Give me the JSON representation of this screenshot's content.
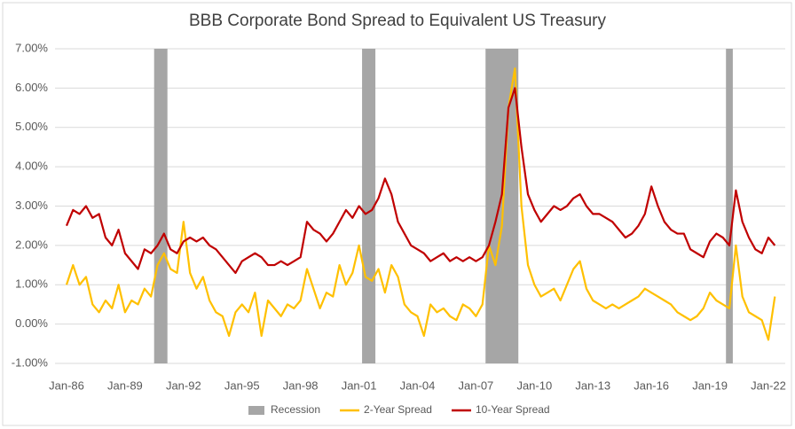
{
  "chart_data": {
    "type": "line",
    "title": "BBB Corporate Bond Spread to Equivalent US Treasury",
    "categories": [
      "Jan-86",
      null,
      null,
      null,
      null,
      null,
      null,
      null,
      null,
      "Jan-89",
      null,
      null,
      null,
      null,
      null,
      null,
      null,
      null,
      "Jan-92",
      null,
      null,
      null,
      null,
      null,
      null,
      null,
      null,
      "Jan-95",
      null,
      null,
      null,
      null,
      null,
      null,
      null,
      null,
      "Jan-98",
      null,
      null,
      null,
      null,
      null,
      null,
      null,
      null,
      "Jan-01",
      null,
      null,
      null,
      null,
      null,
      null,
      null,
      null,
      "Jan-04",
      null,
      null,
      null,
      null,
      null,
      null,
      null,
      null,
      "Jan-07",
      null,
      null,
      null,
      null,
      null,
      null,
      null,
      null,
      "Jan-10",
      null,
      null,
      null,
      null,
      null,
      null,
      null,
      null,
      "Jan-13",
      null,
      null,
      null,
      null,
      null,
      null,
      null,
      null,
      "Jan-16",
      null,
      null,
      null,
      null,
      null,
      null,
      null,
      null,
      "Jan-19",
      null,
      null,
      null,
      null,
      null,
      null,
      null,
      null,
      "Jan-22",
      null
    ],
    "series": [
      {
        "name": "Recession",
        "type": "bar",
        "color": "#a6a6a6",
        "values": [
          null,
          null,
          null,
          null,
          null,
          null,
          null,
          null,
          null,
          null,
          null,
          null,
          null,
          null,
          7,
          7,
          null,
          null,
          null,
          null,
          null,
          null,
          null,
          null,
          null,
          null,
          null,
          null,
          null,
          null,
          null,
          null,
          null,
          null,
          null,
          null,
          null,
          null,
          null,
          null,
          null,
          null,
          null,
          null,
          null,
          null,
          7,
          7,
          null,
          null,
          null,
          null,
          null,
          null,
          null,
          null,
          null,
          null,
          null,
          null,
          null,
          null,
          null,
          null,
          null,
          7,
          7,
          7,
          7,
          7,
          null,
          null,
          null,
          null,
          null,
          null,
          null,
          null,
          null,
          null,
          null,
          null,
          null,
          null,
          null,
          null,
          null,
          null,
          null,
          null,
          null,
          null,
          null,
          null,
          null,
          null,
          null,
          null,
          null,
          null,
          null,
          null,
          7,
          null,
          null,
          null,
          null,
          null,
          null,
          null
        ]
      },
      {
        "name": "2-Year Spread",
        "type": "line",
        "color": "#ffc000",
        "values": [
          1.0,
          1.5,
          1.0,
          1.2,
          0.5,
          0.3,
          0.6,
          0.4,
          1.0,
          0.3,
          0.6,
          0.5,
          0.9,
          0.7,
          1.5,
          1.8,
          1.4,
          1.3,
          2.6,
          1.3,
          0.9,
          1.2,
          0.6,
          0.3,
          0.2,
          -0.3,
          0.3,
          0.5,
          0.3,
          0.8,
          -0.3,
          0.6,
          0.4,
          0.2,
          0.5,
          0.4,
          0.6,
          1.4,
          0.9,
          0.4,
          0.8,
          0.7,
          1.5,
          1.0,
          1.3,
          2.0,
          1.2,
          1.1,
          1.4,
          0.8,
          1.5,
          1.2,
          0.5,
          0.3,
          0.2,
          -0.3,
          0.5,
          0.3,
          0.4,
          0.2,
          0.1,
          0.5,
          0.4,
          0.2,
          0.5,
          2.0,
          1.5,
          2.5,
          5.5,
          6.5,
          3.0,
          1.5,
          1.0,
          0.7,
          0.8,
          0.9,
          0.6,
          1.0,
          1.4,
          1.6,
          0.9,
          0.6,
          0.5,
          0.4,
          0.5,
          0.4,
          0.5,
          0.6,
          0.7,
          0.9,
          0.8,
          0.7,
          0.6,
          0.5,
          0.3,
          0.2,
          0.1,
          0.2,
          0.4,
          0.8,
          0.6,
          0.5,
          0.4,
          2.0,
          0.7,
          0.3,
          0.2,
          0.1,
          -0.4,
          0.7
        ]
      },
      {
        "name": "10-Year Spread",
        "type": "line",
        "color": "#c00000",
        "values": [
          2.5,
          2.9,
          2.8,
          3.0,
          2.7,
          2.8,
          2.2,
          2.0,
          2.4,
          1.8,
          1.6,
          1.4,
          1.9,
          1.8,
          2.0,
          2.3,
          1.9,
          1.8,
          2.1,
          2.2,
          2.1,
          2.2,
          2.0,
          1.9,
          1.7,
          1.5,
          1.3,
          1.6,
          1.7,
          1.8,
          1.7,
          1.5,
          1.5,
          1.6,
          1.5,
          1.6,
          1.7,
          2.6,
          2.4,
          2.3,
          2.1,
          2.3,
          2.6,
          2.9,
          2.7,
          3.0,
          2.8,
          2.9,
          3.2,
          3.7,
          3.3,
          2.6,
          2.3,
          2.0,
          1.9,
          1.8,
          1.6,
          1.7,
          1.8,
          1.6,
          1.7,
          1.6,
          1.7,
          1.6,
          1.7,
          2.0,
          2.6,
          3.3,
          5.5,
          6.0,
          4.5,
          3.3,
          2.9,
          2.6,
          2.8,
          3.0,
          2.9,
          3.0,
          3.2,
          3.3,
          3.0,
          2.8,
          2.8,
          2.7,
          2.6,
          2.4,
          2.2,
          2.3,
          2.5,
          2.8,
          3.5,
          3.0,
          2.6,
          2.4,
          2.3,
          2.3,
          1.9,
          1.8,
          1.7,
          2.1,
          2.3,
          2.2,
          2.0,
          3.4,
          2.6,
          2.2,
          1.9,
          1.8,
          2.2,
          2.0
        ]
      }
    ],
    "ylim": [
      -1,
      7
    ],
    "yticks": [
      {
        "value": -1,
        "label": "-1.00%"
      },
      {
        "value": 0,
        "label": "0.00%"
      },
      {
        "value": 1,
        "label": "1.00%"
      },
      {
        "value": 2,
        "label": "2.00%"
      },
      {
        "value": 3,
        "label": "3.00%"
      },
      {
        "value": 4,
        "label": "4.00%"
      },
      {
        "value": 5,
        "label": "5.00%"
      },
      {
        "value": 6,
        "label": "6.00%"
      },
      {
        "value": 7,
        "label": "7.00%"
      }
    ],
    "grid": true,
    "legend": "bottom"
  }
}
